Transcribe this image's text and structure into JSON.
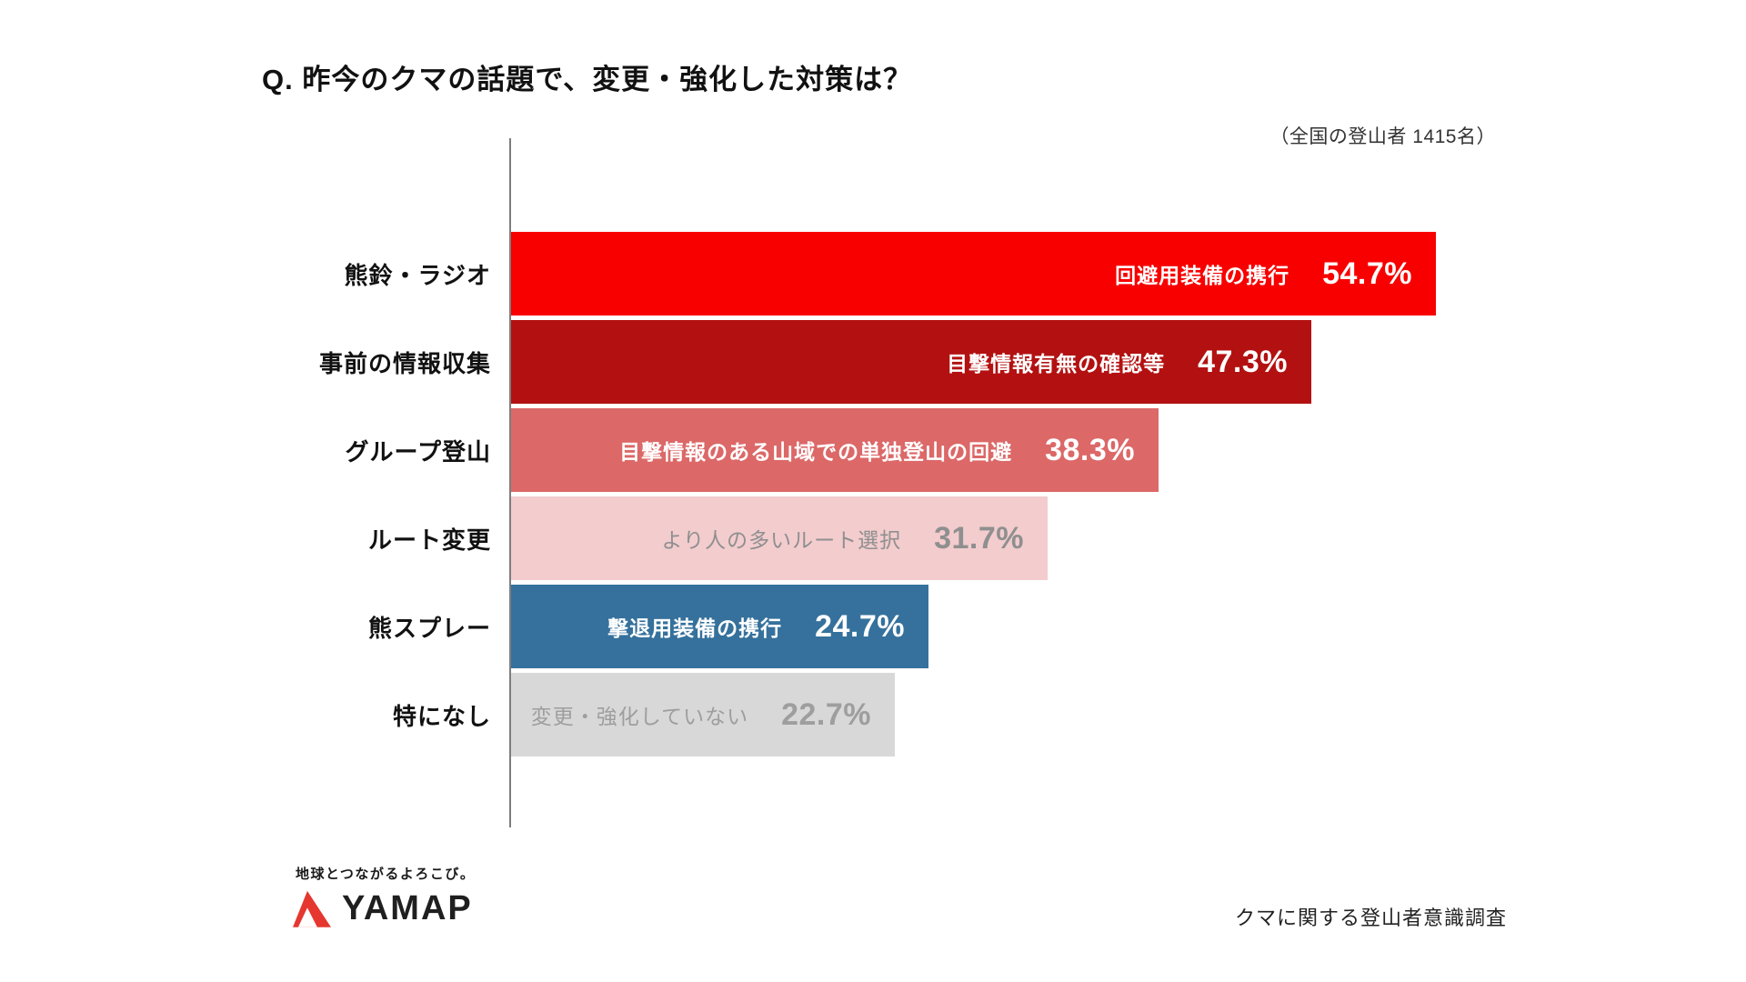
{
  "title": "Q. 昨今のクマの話題で、変更・強化した対策は？",
  "sample_note": "（全国の登山者 1415名）",
  "footer": {
    "tagline": "地球とつながるよろこび。",
    "brand": "YAMAP",
    "survey_name": "クマに関する登山者意識調査",
    "brand_red": "#e5372f"
  },
  "chart_data": {
    "type": "bar",
    "orientation": "horizontal",
    "title": "Q. 昨今のクマの話題で、変更・強化した対策は？",
    "xlim": [
      0,
      57
    ],
    "grid": false,
    "legend": false,
    "categories": [
      "熊鈴・ラジオ",
      "事前の情報収集",
      "グループ登山",
      "ルート変更",
      "熊スプレー",
      "特になし"
    ],
    "values": [
      54.7,
      47.3,
      38.3,
      31.7,
      24.7,
      22.7
    ],
    "rows": [
      {
        "category": "熊鈴・ラジオ",
        "annotation": "回避用装備の携行",
        "value": 54.7,
        "value_label": "54.7%",
        "bar_color": "#f80000",
        "text_color": "#ffffff",
        "muted": false
      },
      {
        "category": "事前の情報収集",
        "annotation": "目撃情報有無の確認等",
        "value": 47.3,
        "value_label": "47.3%",
        "bar_color": "#b31111",
        "text_color": "#ffffff",
        "muted": false
      },
      {
        "category": "グループ登山",
        "annotation": "目撃情報のある山域での単独登山の回避",
        "value": 38.3,
        "value_label": "38.3%",
        "bar_color": "#dc6868",
        "text_color": "#ffffff",
        "muted": false
      },
      {
        "category": "ルート変更",
        "annotation": "より人の多いルート選択",
        "value": 31.7,
        "value_label": "31.7%",
        "bar_color": "#f3ccce",
        "text_color": "#8f8f8f",
        "muted": true
      },
      {
        "category": "熊スプレー",
        "annotation": "撃退用装備の携行",
        "value": 24.7,
        "value_label": "24.7%",
        "bar_color": "#35719c",
        "text_color": "#ffffff",
        "muted": false
      },
      {
        "category": "特になし",
        "annotation": "変更・強化していない",
        "value": 22.7,
        "value_label": "22.7%",
        "bar_color": "#d8d8d8",
        "text_color": "#9e9e9e",
        "muted": true
      }
    ]
  }
}
